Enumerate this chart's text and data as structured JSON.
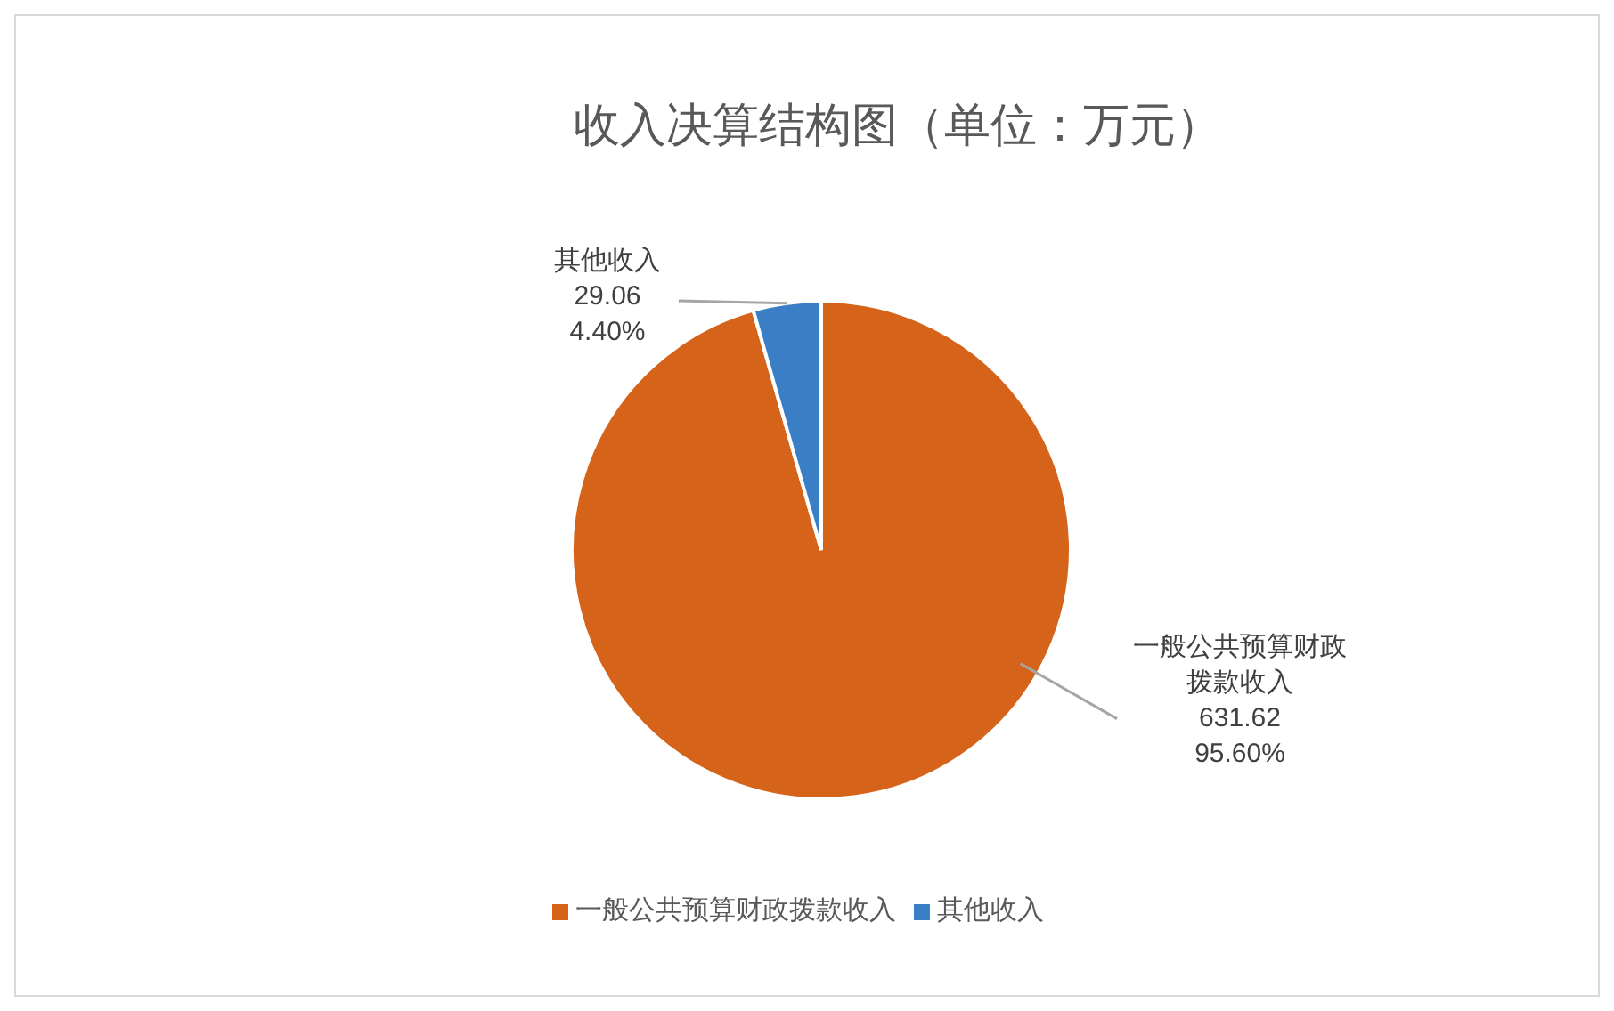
{
  "chart_data": {
    "type": "pie",
    "title": "收入决算结构图（单位：万元）",
    "categories": [
      "一般公共预算财政拨款收入",
      "其他收入"
    ],
    "values": [
      631.62,
      29.06
    ],
    "colors": [
      "#d5631a",
      "#3a7ec6"
    ],
    "value_labels": [
      "631.62\n95.60%",
      "29.06\n4.40%"
    ],
    "legend": "bottom"
  }
}
